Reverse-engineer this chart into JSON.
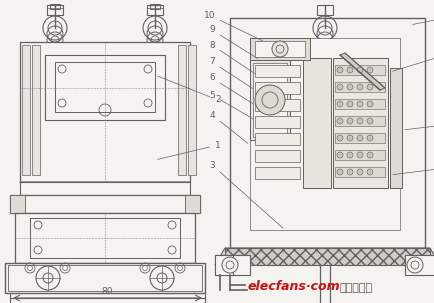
{
  "background_color": "#f5f3ef",
  "watermark_text": "elecfans·com",
  "watermark_text2": "电子发烧友",
  "watermark_color": "#cc1111",
  "watermark_color2": "#555555",
  "line_color": "#606060",
  "fig_w": 4.35,
  "fig_h": 3.03,
  "dpi": 100
}
